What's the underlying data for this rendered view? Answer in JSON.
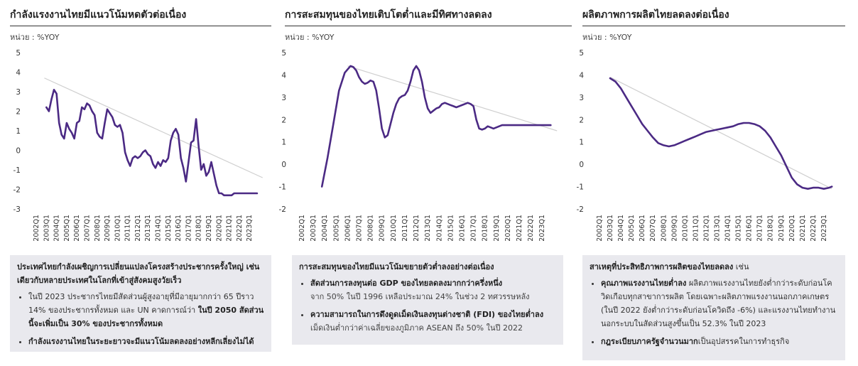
{
  "unit_label": "หน่วย : %YOY",
  "panels": [
    {
      "title": "กำลังแรงงานไทยมีแนวโน้มหดตัวต่อเนื่อง",
      "box": {
        "heading": "ประเทศไทยกำลังเผชิญการเปลี่ยนแปลงโครงสร้างประชากรครั้งใหญ่ เช่นเดียวกับหลายประเทศในโลกที่เข้าสู่สังคมสูงวัยเร็ว",
        "bullet1_a": "ในปี 2023 ประชากรไทยมีสัดส่วนผู้สูงอายุที่มีอายุมากกว่า 65 ปีราว 14% ของประชากรทั้งหมด และ UN คาดการณ์ว่า ",
        "bullet1_b": "ในปี 2050 สัดส่วนนี้จะเพิ่มเป็น 30% ของประชากรทั้งหมด",
        "bullet2": "กำลังแรงงานไทยในระยะยาวจะมีแนวโน้มลดลงอย่างหลีกเลี่ยงไม่ได้"
      }
    },
    {
      "title": "การสะสมทุนของไทยเติบโตต่ำและมีทิศทางลดลง",
      "box": {
        "heading": "การสะสมทุนของไทยมีแนวโน้มขยายตัวต่ำลงอย่างต่อเนื่อง",
        "bullet1_bold": "สัดส่วนการลงทุนต่อ GDP ของไทยลดลงมากกว่าครึ่งหนึ่ง",
        "bullet1_sub": "จาก 50% ในปี 1996 เหลือประมาณ 24% ในช่วง 2 ทศวรรษหลัง",
        "bullet2_bold": "ความสามารถในการดึงดูดเม็ดเงินลงทุนต่างชาติ (FDI) ของไทยต่ำลง",
        "bullet2_sub": "เม็ดเงินต่ำกว่าค่าเฉลี่ยของภูมิภาค ASEAN ถึง 50% ในปี 2022"
      }
    },
    {
      "title": "ผลิตภาพการผลิตไทยลดลงต่อเนื่อง",
      "box": {
        "heading_bold": "สาเหตุที่ประสิทธิภาพการผลิตของไทยลดลง",
        "heading_rest": " เช่น",
        "bullet1_bold": "คุณภาพแรงงานไทยต่ำลง",
        "bullet1_rest": " ผลิตภาพแรงงานไทยยังต่ำกว่าระดับก่อนโควิดเกือบทุกสาขาการผลิต โดยเฉพาะผลิตภาพแรงงานนอกภาคเกษตร (ในปี 2022 ยังต่ำกว่าระดับก่อนโควิดถึง -6%) และแรงงานไทยทำงานนอกระบบในสัดส่วนสูงขึ้นเป็น 52.3% ในปี 2023",
        "bullet2_bold": "กฎระเบียบภาครัฐจำนวนมาก",
        "bullet2_rest": "เป็นอุปสรรคในการทำธุรกิจ"
      }
    }
  ],
  "chart_data": [
    {
      "type": "line",
      "title": "กำลังแรงงานไทยมีแนวโน้มหดตัวต่อเนื่อง",
      "ylabel": "หน่วย : %YOY",
      "ylim": [
        -3,
        5
      ],
      "yticks": [
        5,
        4,
        3,
        2,
        1,
        0,
        -1,
        -2,
        -3
      ],
      "x_tick_labels": [
        "2002Q1",
        "2003Q1",
        "2004Q1",
        "2005Q1",
        "2006Q1",
        "2007Q1",
        "2008Q1",
        "2009Q1",
        "2010Q1",
        "2011Q1",
        "2012Q1",
        "2013Q1",
        "2014Q1",
        "2015Q1",
        "2016Q1",
        "2017Q1",
        "2018Q1",
        "2019Q1",
        "2020Q1",
        "2021Q1",
        "2022Q1",
        "2023Q1"
      ],
      "x_range": [
        2002.0,
        2024.6
      ],
      "trend": {
        "x": [
          2002.8,
          2024.3
        ],
        "y": [
          3.7,
          -1.4
        ]
      },
      "series": [
        {
          "color": "#4b2a84",
          "x": [
            2003.0,
            2003.25,
            2003.5,
            2003.75,
            2004.0,
            2004.25,
            2004.5,
            2004.75,
            2005.0,
            2005.25,
            2005.5,
            2005.75,
            2006.0,
            2006.25,
            2006.5,
            2006.75,
            2007.0,
            2007.25,
            2007.5,
            2007.75,
            2008.0,
            2008.25,
            2008.5,
            2008.75,
            2009.0,
            2009.25,
            2009.5,
            2009.75,
            2010.0,
            2010.25,
            2010.5,
            2010.75,
            2011.0,
            2011.25,
            2011.5,
            2011.75,
            2012.0,
            2012.25,
            2012.5,
            2012.75,
            2013.0,
            2013.25,
            2013.5,
            2013.75,
            2014.0,
            2014.25,
            2014.5,
            2014.75,
            2015.0,
            2015.25,
            2015.5,
            2015.75,
            2016.0,
            2016.25,
            2016.5,
            2016.75,
            2017.0,
            2017.25,
            2017.5,
            2017.75,
            2018.0,
            2018.25,
            2018.5,
            2018.75,
            2019.0,
            2019.25,
            2019.5,
            2019.75,
            2020.0,
            2020.25,
            2020.5,
            2020.75,
            2021.0,
            2021.25,
            2021.5,
            2021.75,
            2022.0,
            2022.25,
            2022.5,
            2022.75,
            2023.0,
            2023.25,
            2023.5,
            2023.75
          ],
          "y": [
            2.2,
            2.0,
            2.6,
            3.1,
            2.9,
            1.4,
            0.8,
            0.6,
            1.4,
            1.1,
            0.9,
            0.6,
            1.4,
            1.5,
            2.2,
            2.1,
            2.4,
            2.3,
            2.0,
            1.8,
            0.9,
            0.7,
            0.6,
            1.4,
            2.1,
            1.9,
            1.7,
            1.3,
            1.2,
            1.3,
            0.9,
            -0.1,
            -0.5,
            -0.8,
            -0.4,
            -0.3,
            -0.4,
            -0.3,
            -0.1,
            0.0,
            -0.2,
            -0.3,
            -0.7,
            -0.9,
            -0.6,
            -0.8,
            -0.5,
            -0.6,
            -0.4,
            0.5,
            0.9,
            1.1,
            0.8,
            -0.4,
            -0.9,
            -1.6,
            -0.6,
            0.4,
            0.5,
            1.6,
            0.2,
            -1.0,
            -0.7,
            -1.3,
            -1.1,
            -0.6,
            -1.2,
            -1.8,
            -2.2,
            -2.2,
            -2.3,
            -2.3,
            -2.3,
            -2.3,
            -2.2,
            -2.2,
            -2.2,
            -2.2,
            -2.2,
            -2.2,
            -2.2,
            -2.2,
            -2.2,
            -2.2
          ]
        }
      ]
    },
    {
      "type": "line",
      "title": "การสะสมทุนของไทยเติบโตต่ำและมีทิศทางลดลง",
      "ylabel": "หน่วย : %YOY",
      "ylim": [
        -2,
        5
      ],
      "yticks": [
        5,
        4,
        3,
        2,
        1,
        0,
        -1,
        -2
      ],
      "x_tick_labels": [
        "2002Q1",
        "2003Q1",
        "2004Q1",
        "2005Q1",
        "2006Q1",
        "2007Q1",
        "2008Q1",
        "2009Q1",
        "2010Q1",
        "2011Q1",
        "2012Q1",
        "2013Q1",
        "2014Q1",
        "2015Q1",
        "2016Q1",
        "2017Q1",
        "2018Q1",
        "2019Q1",
        "2020Q1",
        "2021Q1",
        "2022Q1",
        "2023Q1"
      ],
      "x_range": [
        2002.0,
        2024.6
      ],
      "trend": {
        "x": [
          2006.0,
          2024.3
        ],
        "y": [
          4.4,
          1.5
        ]
      },
      "series": [
        {
          "color": "#4b2a84",
          "x": [
            2003.75,
            2004.25,
            2004.75,
            2005.25,
            2005.75,
            2006.25,
            2006.5,
            2006.75,
            2007.0,
            2007.25,
            2007.5,
            2007.75,
            2008.0,
            2008.25,
            2008.5,
            2008.75,
            2009.0,
            2009.25,
            2009.5,
            2009.75,
            2010.0,
            2010.25,
            2010.5,
            2010.75,
            2011.0,
            2011.25,
            2011.5,
            2011.75,
            2012.0,
            2012.25,
            2012.5,
            2012.75,
            2013.0,
            2013.25,
            2013.5,
            2013.75,
            2014.0,
            2014.25,
            2014.5,
            2014.75,
            2015.0,
            2015.25,
            2015.5,
            2015.75,
            2016.0,
            2016.25,
            2016.5,
            2016.75,
            2017.0,
            2017.25,
            2017.5,
            2017.75,
            2018.0,
            2018.25,
            2018.5,
            2018.75,
            2019.0,
            2019.25,
            2019.5,
            2019.75,
            2020.0,
            2020.25,
            2020.5,
            2020.75,
            2021.0,
            2021.25,
            2021.5,
            2021.75,
            2022.0,
            2022.25,
            2022.5,
            2022.75,
            2023.0,
            2023.25,
            2023.5,
            2023.75
          ],
          "y": [
            -1.0,
            0.3,
            1.8,
            3.3,
            4.1,
            4.4,
            4.35,
            4.2,
            3.9,
            3.7,
            3.6,
            3.65,
            3.75,
            3.7,
            3.3,
            2.5,
            1.6,
            1.2,
            1.3,
            1.8,
            2.3,
            2.7,
            2.95,
            3.05,
            3.1,
            3.3,
            3.7,
            4.2,
            4.4,
            4.2,
            3.7,
            3.0,
            2.5,
            2.3,
            2.4,
            2.5,
            2.55,
            2.7,
            2.75,
            2.7,
            2.65,
            2.6,
            2.55,
            2.6,
            2.65,
            2.7,
            2.75,
            2.7,
            2.6,
            2.0,
            1.6,
            1.55,
            1.6,
            1.7,
            1.65,
            1.6,
            1.65,
            1.7,
            1.75,
            1.75,
            1.75,
            1.75,
            1.75,
            1.75,
            1.75,
            1.75,
            1.75,
            1.75,
            1.75,
            1.75,
            1.75,
            1.75,
            1.75,
            1.75,
            1.75,
            1.75
          ]
        }
      ]
    },
    {
      "type": "line",
      "title": "ผลิตภาพการผลิตไทยลดลงต่อเนื่อง",
      "ylabel": "หน่วย : %YOY",
      "ylim": [
        -2,
        5
      ],
      "yticks": [
        5,
        4,
        3,
        2,
        1,
        0,
        -1,
        -2
      ],
      "x_tick_labels": [
        "2002Q1",
        "2003Q1",
        "2004Q1",
        "2005Q1",
        "2006Q1",
        "2007Q1",
        "2008Q1",
        "2009Q1",
        "2010Q1",
        "2011Q1",
        "2012Q1",
        "2013Q1",
        "2014Q1",
        "2015Q1",
        "2016Q1",
        "2017Q1",
        "2018Q1",
        "2019Q1",
        "2020Q1",
        "2021Q1",
        "2022Q1",
        "2023Q1"
      ],
      "x_range": [
        2002.0,
        2024.6
      ],
      "trend": {
        "x": [
          2003.0,
          2023.75
        ],
        "y": [
          3.9,
          -1.1
        ]
      },
      "series": [
        {
          "color": "#4b2a84",
          "x": [
            2003.0,
            2003.5,
            2004.0,
            2004.5,
            2005.0,
            2005.5,
            2006.0,
            2006.5,
            2007.0,
            2007.5,
            2008.0,
            2008.5,
            2009.0,
            2009.5,
            2010.0,
            2010.5,
            2011.0,
            2011.5,
            2012.0,
            2012.5,
            2013.0,
            2013.5,
            2014.0,
            2014.5,
            2015.0,
            2015.5,
            2016.0,
            2016.5,
            2017.0,
            2017.5,
            2018.0,
            2018.5,
            2019.0,
            2019.5,
            2020.0,
            2020.5,
            2021.0,
            2021.5,
            2022.0,
            2022.5,
            2023.0,
            2023.5,
            2023.75
          ],
          "y": [
            3.85,
            3.7,
            3.4,
            3.0,
            2.6,
            2.2,
            1.8,
            1.5,
            1.2,
            0.95,
            0.85,
            0.8,
            0.85,
            0.95,
            1.05,
            1.15,
            1.25,
            1.35,
            1.45,
            1.5,
            1.55,
            1.6,
            1.65,
            1.7,
            1.8,
            1.85,
            1.85,
            1.8,
            1.7,
            1.5,
            1.2,
            0.8,
            0.4,
            -0.1,
            -0.6,
            -0.9,
            -1.05,
            -1.1,
            -1.05,
            -1.05,
            -1.1,
            -1.05,
            -1.0
          ]
        }
      ]
    }
  ]
}
